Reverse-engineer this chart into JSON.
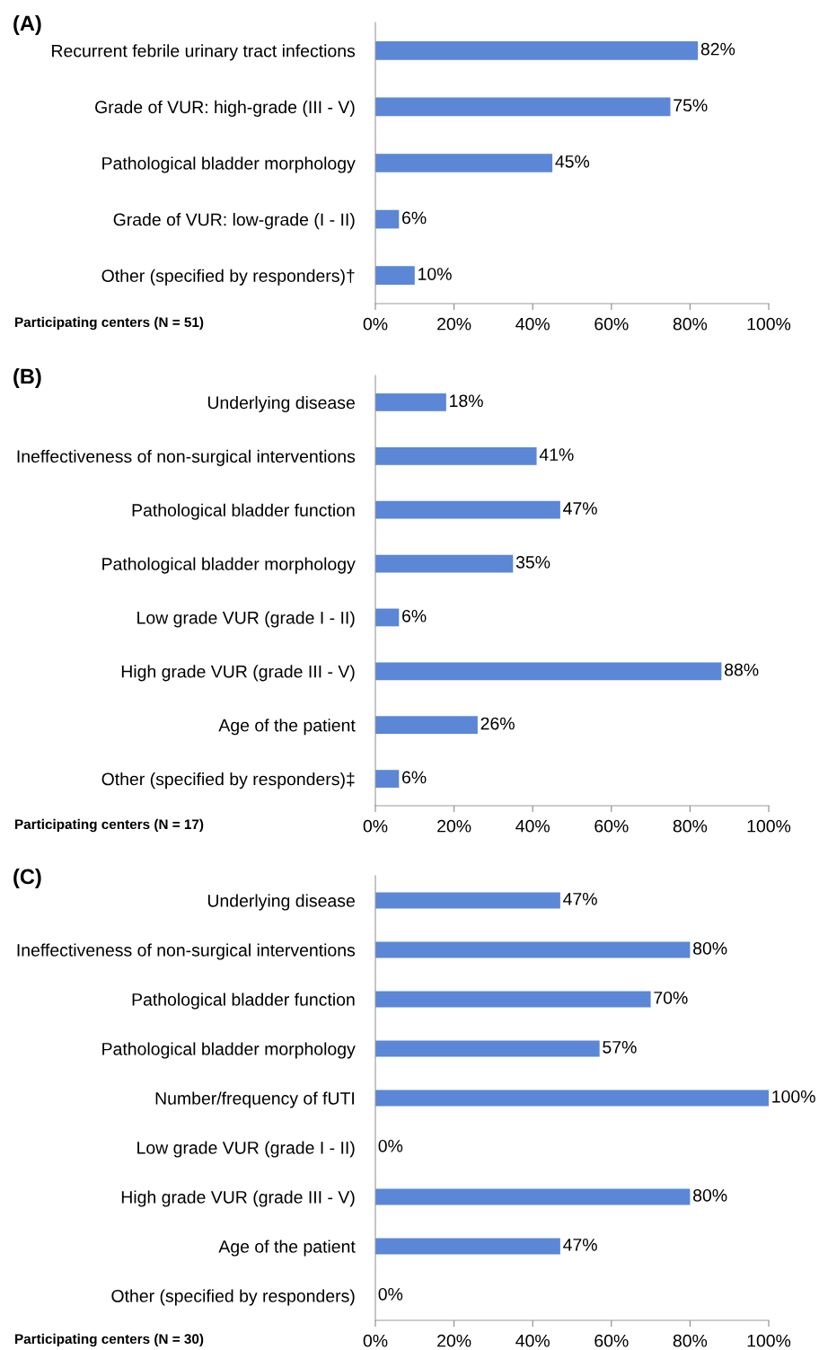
{
  "chart_data": [
    {
      "type": "bar",
      "orientation": "horizontal",
      "title": "(A)",
      "categories": [
        "Recurrent febrile urinary tract infections",
        "Grade of VUR: high-grade (III - V)",
        "Pathological bladder morphology",
        "Grade of VUR: low-grade (I - II)",
        "Other (specified by responders)†"
      ],
      "values": [
        82,
        75,
        45,
        6,
        10
      ],
      "value_labels": [
        "82%",
        "75%",
        "45%",
        "6%",
        "10%"
      ],
      "color": "#5b87d6",
      "xlim": [
        0,
        100
      ],
      "xticks": [
        {
          "value": 0,
          "label": "0%"
        },
        {
          "value": 20,
          "label": "20%"
        },
        {
          "value": 40,
          "label": "40%"
        },
        {
          "value": 60,
          "label": "60%"
        },
        {
          "value": 80,
          "label": "80%"
        },
        {
          "value": 100,
          "label": "100%"
        }
      ],
      "grid": false,
      "legend": false,
      "annotations": [
        "Participating centers (N = 51)"
      ]
    },
    {
      "type": "bar",
      "orientation": "horizontal",
      "title": "(B)",
      "categories": [
        "Underlying disease",
        "Ineffectiveness of non-surgical interventions",
        "Pathological bladder function",
        "Pathological bladder morphology",
        "Low grade VUR (grade I - II)",
        "High grade VUR (grade III - V)",
        "Age of the patient",
        "Other (specified by responders)‡"
      ],
      "values": [
        18,
        41,
        47,
        35,
        6,
        88,
        26,
        6
      ],
      "value_labels": [
        "18%",
        "41%",
        "47%",
        "35%",
        "6%",
        "88%",
        "26%",
        "6%"
      ],
      "color": "#5b87d6",
      "xlim": [
        0,
        100
      ],
      "xticks": [
        {
          "value": 0,
          "label": "0%"
        },
        {
          "value": 20,
          "label": "20%"
        },
        {
          "value": 40,
          "label": "40%"
        },
        {
          "value": 60,
          "label": "60%"
        },
        {
          "value": 80,
          "label": "80%"
        },
        {
          "value": 100,
          "label": "100%"
        }
      ],
      "grid": false,
      "legend": false,
      "annotations": [
        "Participating centers (N = 17)"
      ]
    },
    {
      "type": "bar",
      "orientation": "horizontal",
      "title": "(C)",
      "categories": [
        "Underlying disease",
        "Ineffectiveness of non-surgical interventions",
        "Pathological bladder function",
        "Pathological bladder morphology",
        "Number/frequency of fUTI",
        "Low grade VUR (grade I - II)",
        "High grade VUR (grade III - V)",
        "Age of the patient",
        "Other (specified by responders)"
      ],
      "values": [
        47,
        80,
        70,
        57,
        100,
        0,
        80,
        47,
        0
      ],
      "value_labels": [
        "47%",
        "80%",
        "70%",
        "57%",
        "100%",
        "0%",
        "80%",
        "47%",
        "0%"
      ],
      "color": "#5b87d6",
      "xlim": [
        0,
        100
      ],
      "xticks": [
        {
          "value": 0,
          "label": "0%"
        },
        {
          "value": 20,
          "label": "20%"
        },
        {
          "value": 40,
          "label": "40%"
        },
        {
          "value": 60,
          "label": "60%"
        },
        {
          "value": 80,
          "label": "80%"
        },
        {
          "value": 100,
          "label": "100%"
        }
      ],
      "grid": false,
      "legend": false,
      "annotations": [
        "Participating centers (N = 30)"
      ]
    }
  ]
}
